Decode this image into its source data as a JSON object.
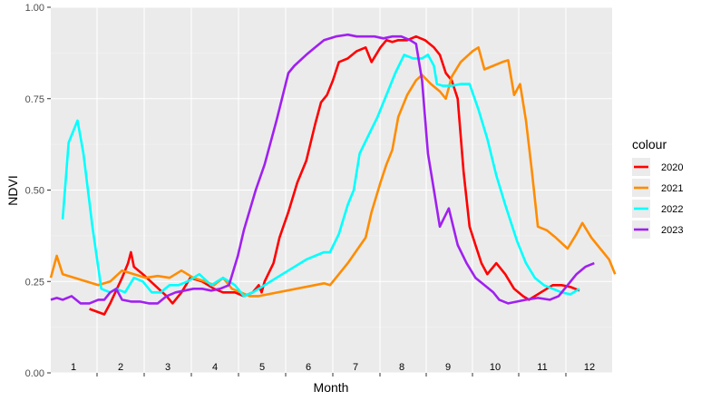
{
  "chart_data": {
    "type": "line",
    "xlabel": "Month",
    "ylabel": "NDVI",
    "ylim": [
      0,
      1
    ],
    "y_ticks": [
      "0.00",
      "0.25",
      "0.50",
      "0.75",
      "1.00"
    ],
    "y_tick_values": [
      0,
      0.25,
      0.5,
      0.75,
      1.0
    ],
    "month_labels": [
      "1",
      "2",
      "3",
      "4",
      "5",
      "6",
      "7",
      "8",
      "9",
      "10",
      "11",
      "12"
    ],
    "grid": true,
    "legend": {
      "title": "colour",
      "placement": "right"
    },
    "series": [
      {
        "name": "2020",
        "color": "#ff0000",
        "points": [
          [
            0.65,
            0.175
          ],
          [
            0.9,
            0.16
          ],
          [
            1.0,
            0.19
          ],
          [
            1.2,
            0.26
          ],
          [
            1.3,
            0.3
          ],
          [
            1.35,
            0.33
          ],
          [
            1.4,
            0.29
          ],
          [
            1.55,
            0.27
          ],
          [
            1.75,
            0.24
          ],
          [
            1.95,
            0.21
          ],
          [
            2.05,
            0.19
          ],
          [
            2.2,
            0.22
          ],
          [
            2.35,
            0.26
          ],
          [
            2.55,
            0.25
          ],
          [
            2.75,
            0.23
          ],
          [
            2.9,
            0.22
          ],
          [
            3.1,
            0.22
          ],
          [
            3.25,
            0.21
          ],
          [
            3.4,
            0.22
          ],
          [
            3.5,
            0.24
          ],
          [
            3.55,
            0.22
          ],
          [
            3.6,
            0.25
          ],
          [
            3.75,
            0.3
          ],
          [
            3.85,
            0.37
          ],
          [
            4.0,
            0.44
          ],
          [
            4.15,
            0.52
          ],
          [
            4.3,
            0.58
          ],
          [
            4.45,
            0.68
          ],
          [
            4.55,
            0.74
          ],
          [
            4.65,
            0.76
          ],
          [
            4.75,
            0.8
          ],
          [
            4.85,
            0.85
          ],
          [
            5.0,
            0.86
          ],
          [
            5.15,
            0.88
          ],
          [
            5.3,
            0.89
          ],
          [
            5.4,
            0.85
          ],
          [
            5.55,
            0.89
          ],
          [
            5.65,
            0.91
          ],
          [
            5.75,
            0.905
          ],
          [
            5.85,
            0.91
          ],
          [
            6.0,
            0.91
          ],
          [
            6.15,
            0.92
          ],
          [
            6.3,
            0.91
          ],
          [
            6.45,
            0.89
          ],
          [
            6.55,
            0.87
          ],
          [
            6.65,
            0.82
          ],
          [
            6.75,
            0.8
          ],
          [
            6.85,
            0.75
          ],
          [
            6.95,
            0.55
          ],
          [
            7.05,
            0.4
          ],
          [
            7.15,
            0.35
          ],
          [
            7.25,
            0.3
          ],
          [
            7.35,
            0.27
          ],
          [
            7.5,
            0.3
          ],
          [
            7.65,
            0.27
          ],
          [
            7.8,
            0.23
          ],
          [
            7.95,
            0.21
          ],
          [
            8.05,
            0.2
          ],
          [
            8.25,
            0.22
          ],
          [
            8.45,
            0.24
          ],
          [
            8.6,
            0.24
          ],
          [
            8.75,
            0.235
          ],
          [
            8.9,
            0.225
          ]
        ]
      },
      {
        "name": "2021",
        "color": "#ff8c00",
        "points": [
          [
            0.0,
            0.26
          ],
          [
            0.1,
            0.32
          ],
          [
            0.2,
            0.27
          ],
          [
            0.4,
            0.26
          ],
          [
            0.6,
            0.25
          ],
          [
            0.8,
            0.24
          ],
          [
            1.0,
            0.25
          ],
          [
            1.2,
            0.28
          ],
          [
            1.4,
            0.27
          ],
          [
            1.6,
            0.26
          ],
          [
            1.8,
            0.265
          ],
          [
            2.0,
            0.26
          ],
          [
            2.1,
            0.27
          ],
          [
            2.2,
            0.28
          ],
          [
            2.4,
            0.26
          ],
          [
            2.6,
            0.25
          ],
          [
            2.75,
            0.24
          ],
          [
            2.9,
            0.26
          ],
          [
            3.05,
            0.23
          ],
          [
            3.2,
            0.22
          ],
          [
            3.35,
            0.21
          ],
          [
            3.5,
            0.21
          ],
          [
            4.6,
            0.245
          ],
          [
            4.7,
            0.24
          ],
          [
            5.0,
            0.3
          ],
          [
            5.3,
            0.37
          ],
          [
            5.4,
            0.44
          ],
          [
            5.55,
            0.52
          ],
          [
            5.65,
            0.57
          ],
          [
            5.75,
            0.61
          ],
          [
            5.85,
            0.7
          ],
          [
            6.0,
            0.76
          ],
          [
            6.15,
            0.8
          ],
          [
            6.25,
            0.815
          ],
          [
            6.4,
            0.79
          ],
          [
            6.55,
            0.77
          ],
          [
            6.65,
            0.75
          ],
          [
            6.75,
            0.81
          ],
          [
            6.9,
            0.85
          ],
          [
            7.1,
            0.88
          ],
          [
            7.2,
            0.89
          ],
          [
            7.3,
            0.83
          ],
          [
            7.45,
            0.84
          ],
          [
            7.6,
            0.85
          ],
          [
            7.7,
            0.855
          ],
          [
            7.8,
            0.76
          ],
          [
            7.9,
            0.79
          ],
          [
            8.0,
            0.69
          ],
          [
            8.1,
            0.55
          ],
          [
            8.2,
            0.4
          ],
          [
            8.35,
            0.39
          ],
          [
            8.5,
            0.37
          ],
          [
            8.7,
            0.34
          ],
          [
            8.85,
            0.38
          ],
          [
            8.95,
            0.41
          ],
          [
            9.1,
            0.37
          ],
          [
            9.25,
            0.34
          ],
          [
            9.4,
            0.31
          ],
          [
            9.5,
            0.27
          ]
        ]
      },
      {
        "name": "2022",
        "color": "#00ffff",
        "points": [
          [
            0.2,
            0.42
          ],
          [
            0.3,
            0.63
          ],
          [
            0.45,
            0.69
          ],
          [
            0.55,
            0.6
          ],
          [
            0.7,
            0.4
          ],
          [
            0.85,
            0.23
          ],
          [
            1.0,
            0.22
          ],
          [
            1.1,
            0.23
          ],
          [
            1.25,
            0.22
          ],
          [
            1.4,
            0.26
          ],
          [
            1.55,
            0.25
          ],
          [
            1.7,
            0.22
          ],
          [
            1.85,
            0.22
          ],
          [
            2.0,
            0.24
          ],
          [
            2.15,
            0.24
          ],
          [
            2.3,
            0.25
          ],
          [
            2.5,
            0.27
          ],
          [
            2.7,
            0.24
          ],
          [
            2.9,
            0.26
          ],
          [
            3.1,
            0.24
          ],
          [
            3.25,
            0.21
          ],
          [
            3.4,
            0.22
          ],
          [
            3.6,
            0.24
          ],
          [
            3.8,
            0.26
          ],
          [
            4.0,
            0.28
          ],
          [
            4.3,
            0.31
          ],
          [
            4.45,
            0.32
          ],
          [
            4.6,
            0.33
          ],
          [
            4.7,
            0.33
          ],
          [
            4.85,
            0.38
          ],
          [
            5.0,
            0.46
          ],
          [
            5.1,
            0.5
          ],
          [
            5.2,
            0.6
          ],
          [
            5.35,
            0.65
          ],
          [
            5.5,
            0.7
          ],
          [
            5.65,
            0.76
          ],
          [
            5.8,
            0.82
          ],
          [
            5.95,
            0.87
          ],
          [
            6.1,
            0.86
          ],
          [
            6.25,
            0.86
          ],
          [
            6.35,
            0.87
          ],
          [
            6.45,
            0.84
          ],
          [
            6.5,
            0.79
          ],
          [
            6.6,
            0.785
          ],
          [
            6.75,
            0.785
          ],
          [
            6.9,
            0.79
          ],
          [
            7.05,
            0.79
          ],
          [
            7.2,
            0.72
          ],
          [
            7.35,
            0.64
          ],
          [
            7.5,
            0.54
          ],
          [
            7.65,
            0.46
          ],
          [
            7.85,
            0.36
          ],
          [
            8.0,
            0.3
          ],
          [
            8.15,
            0.26
          ],
          [
            8.3,
            0.24
          ],
          [
            8.45,
            0.23
          ],
          [
            8.6,
            0.22
          ],
          [
            8.75,
            0.215
          ],
          [
            8.9,
            0.23
          ]
        ]
      },
      {
        "name": "2023",
        "color": "#a020f0",
        "points": [
          [
            0.0,
            0.2
          ],
          [
            0.1,
            0.205
          ],
          [
            0.2,
            0.2
          ],
          [
            0.35,
            0.21
          ],
          [
            0.5,
            0.19
          ],
          [
            0.65,
            0.19
          ],
          [
            0.8,
            0.2
          ],
          [
            0.9,
            0.2
          ],
          [
            1.0,
            0.22
          ],
          [
            1.1,
            0.23
          ],
          [
            1.2,
            0.2
          ],
          [
            1.35,
            0.195
          ],
          [
            1.5,
            0.195
          ],
          [
            1.65,
            0.19
          ],
          [
            1.8,
            0.19
          ],
          [
            1.95,
            0.21
          ],
          [
            2.1,
            0.22
          ],
          [
            2.25,
            0.225
          ],
          [
            2.4,
            0.23
          ],
          [
            2.55,
            0.23
          ],
          [
            2.7,
            0.225
          ],
          [
            2.85,
            0.23
          ],
          [
            3.0,
            0.24
          ],
          [
            3.15,
            0.32
          ],
          [
            3.25,
            0.39
          ],
          [
            3.45,
            0.5
          ],
          [
            3.6,
            0.57
          ],
          [
            3.8,
            0.69
          ],
          [
            4.0,
            0.82
          ],
          [
            4.1,
            0.84
          ],
          [
            4.3,
            0.87
          ],
          [
            4.45,
            0.89
          ],
          [
            4.6,
            0.91
          ],
          [
            4.8,
            0.92
          ],
          [
            5.0,
            0.925
          ],
          [
            5.15,
            0.92
          ],
          [
            5.3,
            0.92
          ],
          [
            5.45,
            0.92
          ],
          [
            5.6,
            0.915
          ],
          [
            5.75,
            0.92
          ],
          [
            5.9,
            0.92
          ],
          [
            6.05,
            0.91
          ],
          [
            6.15,
            0.9
          ],
          [
            6.25,
            0.8
          ],
          [
            6.35,
            0.6
          ],
          [
            6.45,
            0.5
          ],
          [
            6.55,
            0.4
          ],
          [
            6.7,
            0.45
          ],
          [
            6.85,
            0.35
          ],
          [
            7.0,
            0.3
          ],
          [
            7.15,
            0.26
          ],
          [
            7.3,
            0.24
          ],
          [
            7.45,
            0.22
          ],
          [
            7.55,
            0.2
          ],
          [
            7.7,
            0.19
          ],
          [
            7.85,
            0.195
          ],
          [
            8.0,
            0.2
          ],
          [
            8.2,
            0.205
          ],
          [
            8.4,
            0.2
          ],
          [
            8.55,
            0.21
          ],
          [
            8.7,
            0.24
          ],
          [
            8.85,
            0.27
          ],
          [
            9.0,
            0.29
          ],
          [
            9.15,
            0.3
          ]
        ]
      }
    ]
  }
}
